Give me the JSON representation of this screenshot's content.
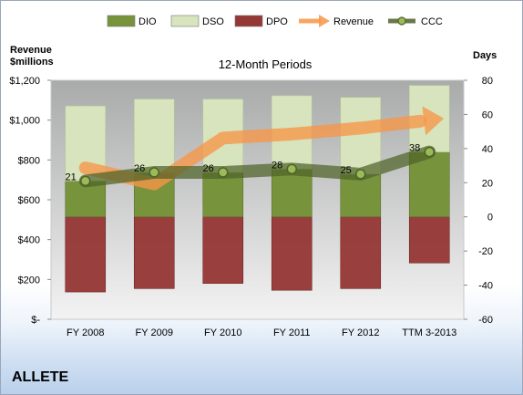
{
  "company": "ALLETE",
  "chart_data": {
    "type": "bar",
    "title": "12-Month Periods",
    "categories": [
      "FY 2008",
      "FY 2009",
      "FY 2010",
      "FY 2011",
      "FY 2012",
      "TTM 3-2013"
    ],
    "y_left": {
      "label_line1": "Revenue",
      "label_line2": "$millions",
      "range": [
        0,
        1200
      ],
      "ticks": [
        0,
        200,
        400,
        600,
        800,
        1000,
        1200
      ],
      "tick_labels": [
        "$-",
        "$200",
        "$400",
        "$600",
        "$800",
        "$1,000",
        "$1,200"
      ]
    },
    "y_right": {
      "label": "Days",
      "range": [
        -60,
        80
      ],
      "ticks": [
        -60,
        -40,
        -20,
        0,
        20,
        40,
        60,
        80
      ],
      "tick_labels": [
        "-60",
        "-40",
        "-20",
        "0",
        "20",
        "40",
        "60",
        "80"
      ]
    },
    "series": [
      {
        "name": "DIO",
        "axis": "right",
        "kind": "stacked-bar",
        "color": "#77933c",
        "values": [
          21,
          26,
          26,
          28,
          25,
          38
        ]
      },
      {
        "name": "DSO",
        "axis": "right",
        "kind": "stacked-bar",
        "color": "#d7e4bd",
        "values": [
          44,
          43,
          43,
          43,
          45,
          39
        ]
      },
      {
        "name": "DPO",
        "axis": "right",
        "kind": "negative-bar",
        "color": "#953735",
        "values": [
          -44,
          -42,
          -39,
          -43,
          -42,
          -27
        ]
      },
      {
        "name": "Revenue",
        "axis": "left",
        "kind": "arrow-line",
        "color": "#f79646",
        "values": [
          760,
          680,
          910,
          930,
          960,
          1000
        ]
      },
      {
        "name": "CCC",
        "axis": "right",
        "kind": "line",
        "color": "#4f6228",
        "values": [
          21,
          26,
          26,
          28,
          25,
          38
        ]
      }
    ],
    "ccc_labels": [
      "21",
      "26",
      "26",
      "28",
      "25",
      "38"
    ],
    "grid": false,
    "legend": "top"
  }
}
